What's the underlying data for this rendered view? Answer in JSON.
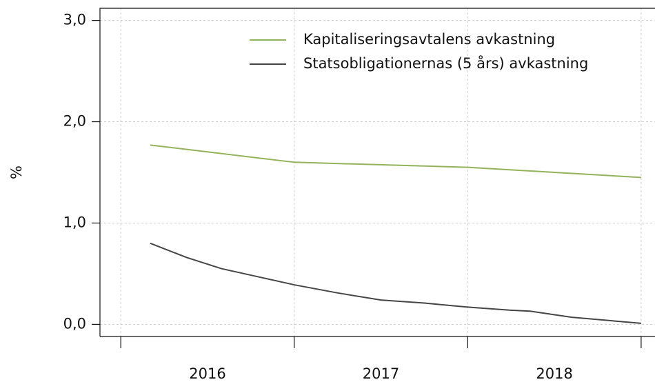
{
  "chart_data": {
    "type": "line",
    "ylabel": "%",
    "xlim": [
      2015.88,
      2019.08
    ],
    "xticks": [
      2016,
      2017,
      2018,
      2019
    ],
    "xlabels": [
      {
        "value": 2016.5,
        "label": "2016"
      },
      {
        "value": 2017.5,
        "label": "2017"
      },
      {
        "value": 2018.5,
        "label": "2018"
      }
    ],
    "ylim": [
      -0.12,
      3.12
    ],
    "yticks": [
      {
        "value": 0,
        "label": "0,0"
      },
      {
        "value": 1,
        "label": "1,0"
      },
      {
        "value": 2,
        "label": "2,0"
      },
      {
        "value": 3,
        "label": "3,0"
      }
    ],
    "grid": true,
    "series": [
      {
        "name": "Kapitaliseringsavtalens avkastning",
        "color": "#93b35a",
        "x": [
          2016.17,
          2017.0,
          2018.0,
          2019.0
        ],
        "values": [
          1.77,
          1.6,
          1.55,
          1.45
        ]
      },
      {
        "name": "Statsobligationernas (5 års) avkastning",
        "color": "#454545",
        "x": [
          2016.17,
          2016.38,
          2016.58,
          2016.79,
          2017.0,
          2017.25,
          2017.5,
          2017.75,
          2018.0,
          2018.24,
          2018.36,
          2018.6,
          2019.0
        ],
        "values": [
          0.8,
          0.66,
          0.55,
          0.47,
          0.39,
          0.31,
          0.24,
          0.21,
          0.17,
          0.14,
          0.13,
          0.07,
          0.01
        ]
      }
    ]
  }
}
